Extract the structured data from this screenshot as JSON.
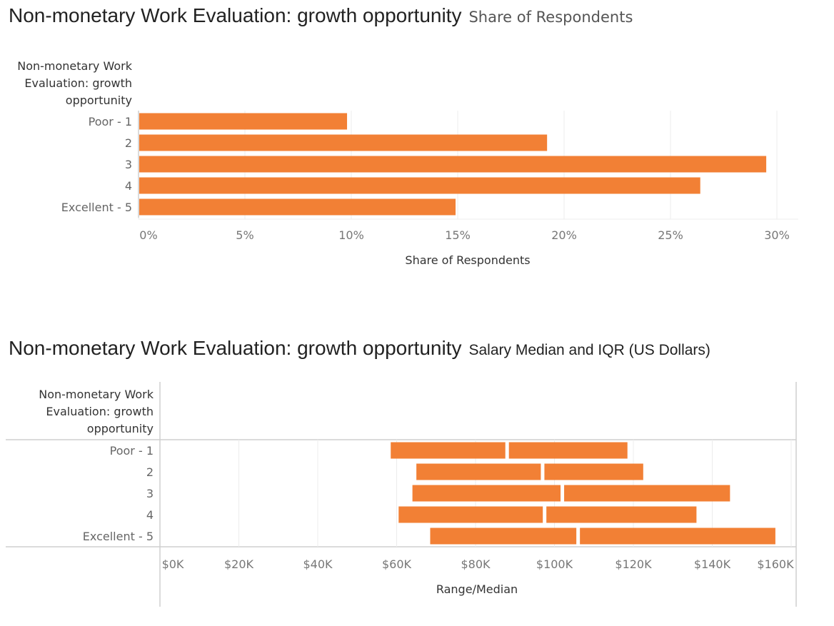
{
  "chart_data": [
    {
      "type": "bar",
      "title": "Non-monetary Work Evaluation: growth opportunity",
      "subtitle": "Share of Respondents",
      "dimension_label": [
        "Non-monetary Work",
        "Evaluation: growth",
        "opportunity"
      ],
      "categories": [
        "Poor - 1",
        "2",
        "3",
        "4",
        "Excellent - 5"
      ],
      "values": [
        9.8,
        19.2,
        29.5,
        26.4,
        14.9
      ],
      "unit": "%",
      "xlabel": "Share of Respondents",
      "xlim": [
        0,
        31
      ],
      "ticks": [
        0,
        5,
        10,
        15,
        20,
        25,
        30
      ],
      "tick_labels": [
        "0%",
        "5%",
        "10%",
        "15%",
        "20%",
        "25%",
        "30%"
      ],
      "color": "#f28035",
      "grid": true
    },
    {
      "type": "range",
      "title": "Non-monetary Work Evaluation: growth opportunity",
      "subtitle": "Salary Median and IQR (US Dollars)",
      "dimension_label": [
        "Non-monetary Work",
        "Evaluation: growth",
        "opportunity"
      ],
      "categories": [
        "Poor - 1",
        "2",
        "3",
        "4",
        "Excellent - 5"
      ],
      "q1": [
        58500,
        65000,
        64000,
        60500,
        68500
      ],
      "median": [
        88000,
        97000,
        102000,
        97500,
        106000
      ],
      "q3": [
        118500,
        122500,
        144500,
        136000,
        156000
      ],
      "xlabel": "Range/Median",
      "xlim": [
        0,
        160000
      ],
      "ticks": [
        0,
        20000,
        40000,
        60000,
        80000,
        100000,
        120000,
        140000,
        160000
      ],
      "tick_labels": [
        "$0K",
        "$20K",
        "$40K",
        "$60K",
        "$80K",
        "$100K",
        "$120K",
        "$140K",
        "$160K"
      ],
      "color": "#f28035",
      "grid": true
    }
  ]
}
